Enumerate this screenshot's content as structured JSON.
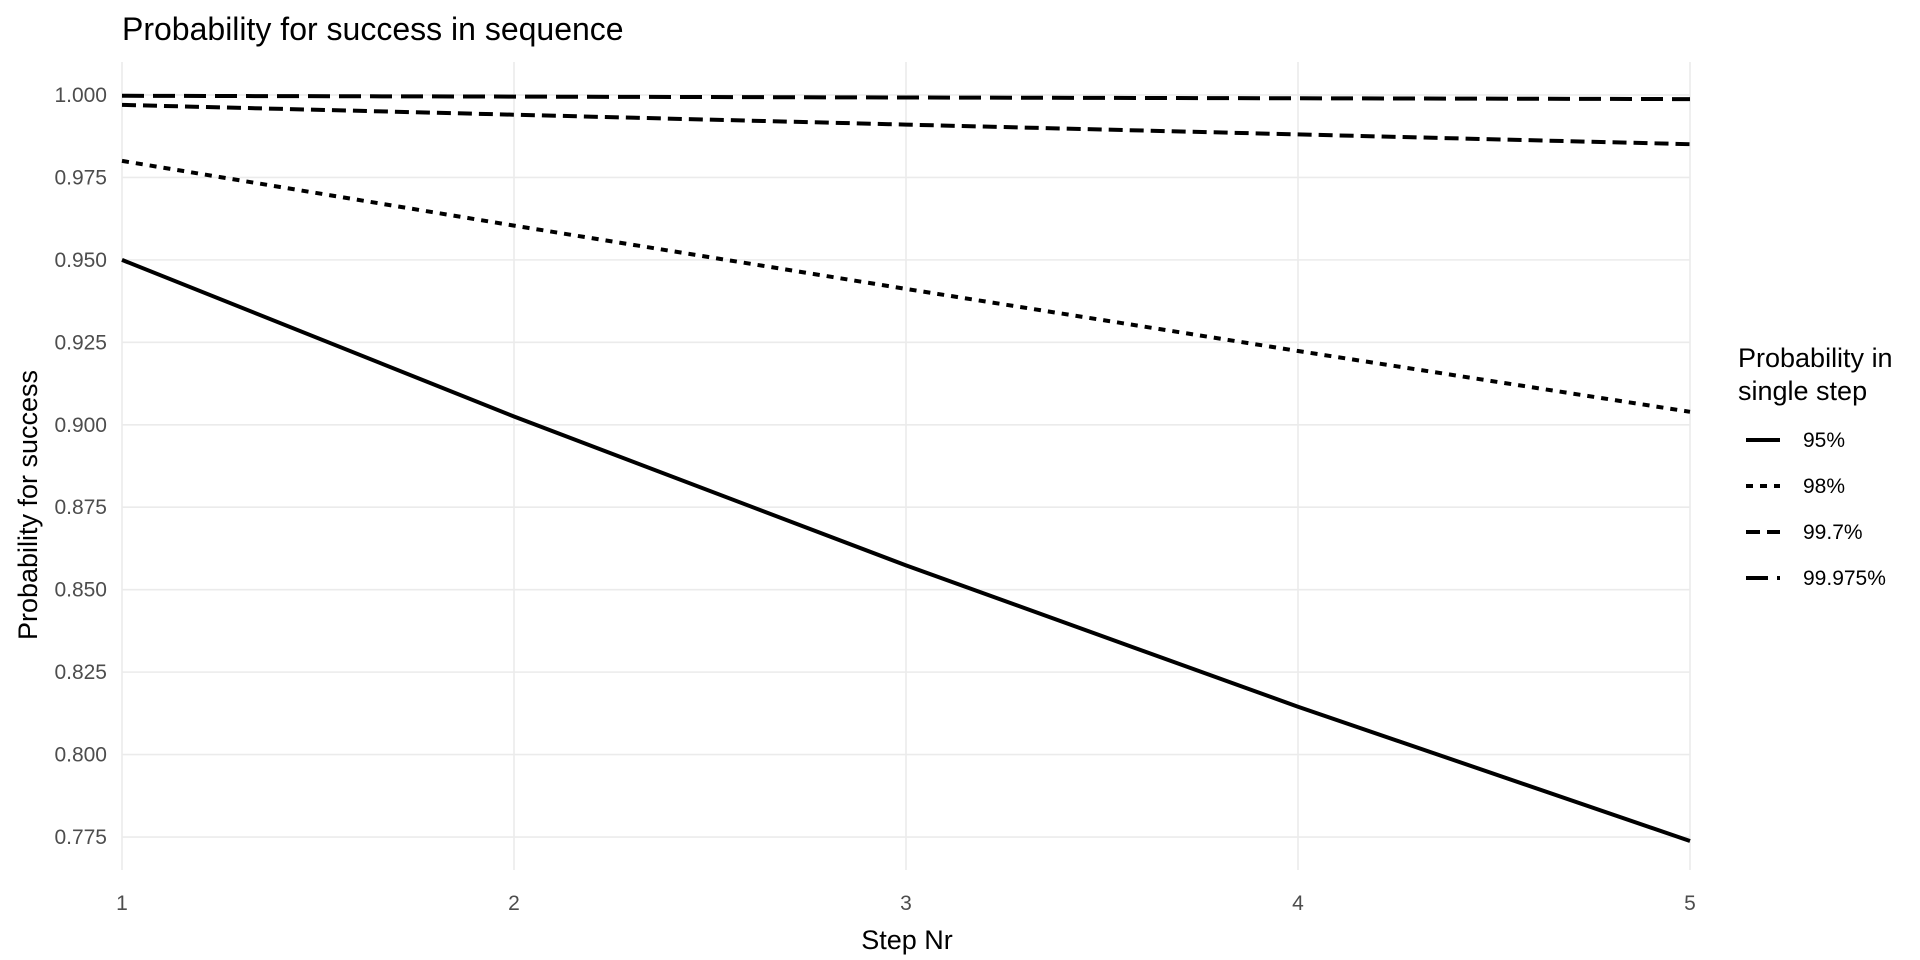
{
  "chart_data": {
    "type": "line",
    "title": "Probability for success in sequence",
    "xlabel": "Step Nr",
    "ylabel": "Probability for success",
    "x": [
      1,
      2,
      3,
      4,
      5
    ],
    "xlim": [
      1,
      5
    ],
    "ylim": [
      0.765,
      1.01
    ],
    "xticks": [
      "1",
      "2",
      "3",
      "4",
      "5"
    ],
    "yticks": [
      "0.775",
      "0.800",
      "0.825",
      "0.850",
      "0.875",
      "0.900",
      "0.925",
      "0.950",
      "0.975",
      "1.000"
    ],
    "grid": true,
    "legend": {
      "title_line1": "Probability in",
      "title_line2": "single step",
      "placement": "right"
    },
    "series": [
      {
        "name": "95%",
        "linetype": "solid",
        "values": [
          0.95,
          0.9025,
          0.857375,
          0.814506,
          0.773781
        ]
      },
      {
        "name": "98%",
        "linetype": "dotted",
        "values": [
          0.98,
          0.9604,
          0.941192,
          0.922368,
          0.903921
        ]
      },
      {
        "name": "99.7%",
        "linetype": "dashed",
        "values": [
          0.997,
          0.994009,
          0.991027,
          0.988054,
          0.98509
        ]
      },
      {
        "name": "99.975%",
        "linetype": "longdash",
        "values": [
          0.99975,
          0.9995,
          0.99925,
          0.999,
          0.99875
        ]
      }
    ],
    "line_color": "#000000",
    "grid_color": "#ebebeb"
  }
}
